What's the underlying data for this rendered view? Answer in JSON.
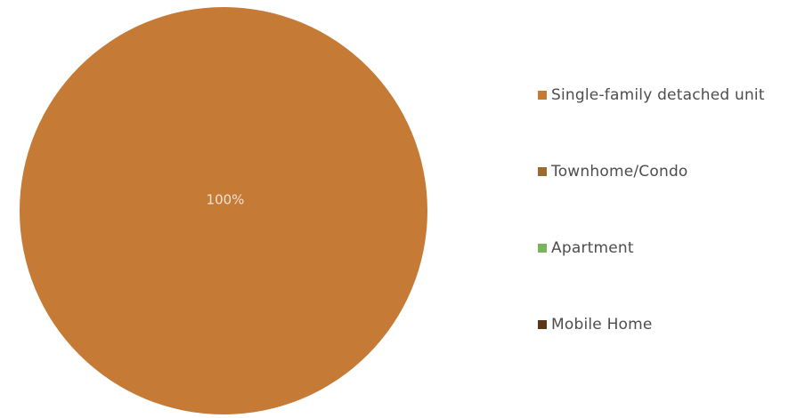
{
  "chart_data": {
    "type": "pie",
    "title": "",
    "slices": [
      {
        "label": "Single-family detached unit",
        "value": 100,
        "color": "#c57a36"
      },
      {
        "label": "Townhome/Condo",
        "value": 0,
        "color": "#9c6a2e"
      },
      {
        "label": "Apartment",
        "value": 0,
        "color": "#7ab55c"
      },
      {
        "label": "Mobile Home",
        "value": 0,
        "color": "#5b3717"
      }
    ],
    "data_labels": [
      "100%"
    ],
    "legend_position": "right"
  }
}
